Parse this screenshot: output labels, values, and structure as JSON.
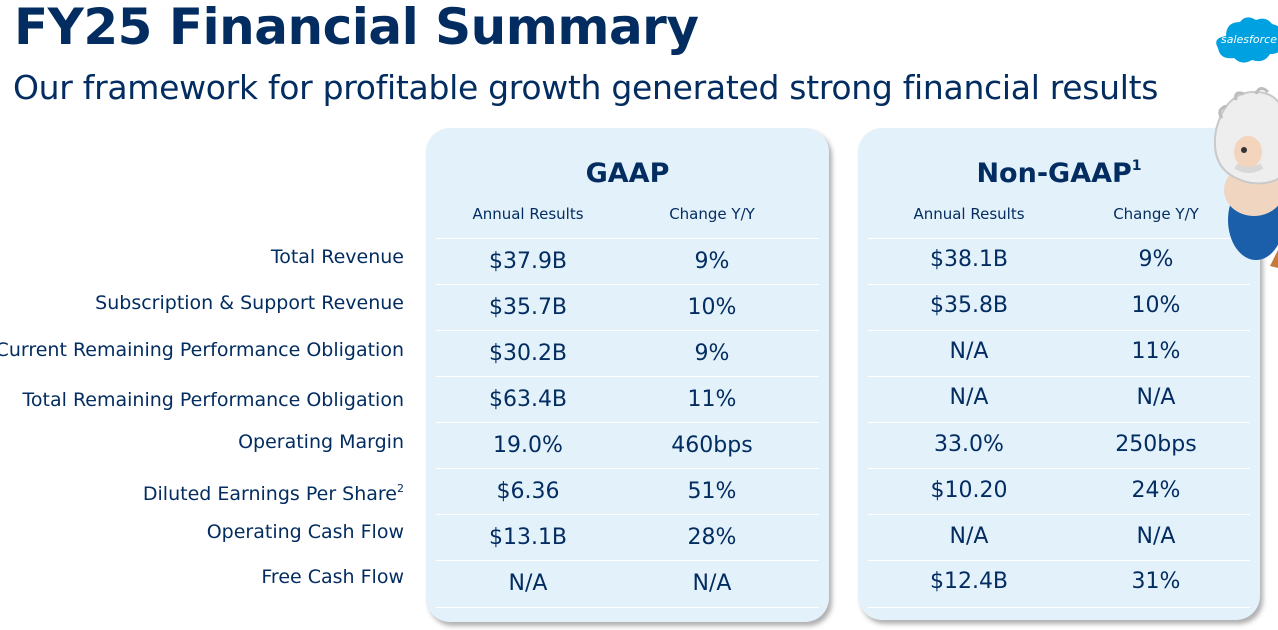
{
  "header": {
    "title": "FY25 Financial Summary",
    "subtitle": "Our framework for profitable growth generated strong financial results"
  },
  "brand": {
    "logo_text": "salesforce",
    "colors": {
      "navy": "#032d60",
      "card_bg": "#e3f1fb",
      "cloud_blue": "#00a1e0"
    }
  },
  "metrics": [
    {
      "label": "Total Revenue",
      "superscript": ""
    },
    {
      "label": "Subscription & Support Revenue",
      "superscript": ""
    },
    {
      "label": "Current Remaining Performance Obligation",
      "superscript": ""
    },
    {
      "label": "Total Remaining Performance Obligation",
      "superscript": ""
    },
    {
      "label": "Operating Margin",
      "superscript": ""
    },
    {
      "label": "Diluted Earnings Per Share",
      "superscript": "2"
    },
    {
      "label": "Operating Cash Flow",
      "superscript": ""
    },
    {
      "label": "Free Cash Flow",
      "superscript": ""
    }
  ],
  "gaap": {
    "title": "GAAP",
    "col_annual": "Annual Results",
    "col_change": "Change Y/Y",
    "rows": [
      {
        "annual": "$37.9B",
        "change": "9%"
      },
      {
        "annual": "$35.7B",
        "change": "10%"
      },
      {
        "annual": "$30.2B",
        "change": "9%"
      },
      {
        "annual": "$63.4B",
        "change": "11%"
      },
      {
        "annual": "19.0%",
        "change": "460bps"
      },
      {
        "annual": "$6.36",
        "change": "51%"
      },
      {
        "annual": "$13.1B",
        "change": "28%"
      },
      {
        "annual": "N/A",
        "change": "N/A"
      }
    ]
  },
  "nongaap": {
    "title": "Non-GAAP",
    "title_superscript": "1",
    "col_annual": "Annual Results",
    "col_change": "Change Y/Y",
    "rows": [
      {
        "annual": "$38.1B",
        "change": "9%"
      },
      {
        "annual": "$35.8B",
        "change": "10%"
      },
      {
        "annual": "N/A",
        "change": "11%"
      },
      {
        "annual": "N/A",
        "change": "N/A"
      },
      {
        "annual": "33.0%",
        "change": "250bps"
      },
      {
        "annual": "$10.20",
        "change": "24%"
      },
      {
        "annual": "N/A",
        "change": "N/A"
      },
      {
        "annual": "$12.4B",
        "change": "31%"
      }
    ]
  }
}
